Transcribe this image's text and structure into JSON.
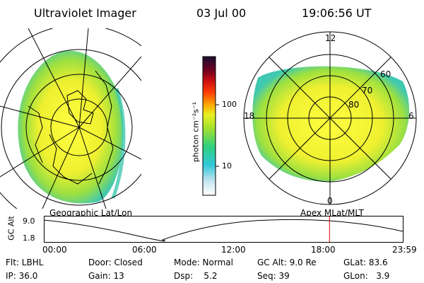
{
  "header": {
    "instrument": "Ultraviolet Imager",
    "date": "03 Jul 00",
    "time": "19:06:56 UT"
  },
  "panels": {
    "left_caption": "Geographic Lat/Lon",
    "right_caption": "Apex MLat/MLT"
  },
  "polar_plot": {
    "mlt_labels": {
      "top": "12",
      "bottom": "0",
      "left": "18",
      "right": "6"
    },
    "lat_labels": [
      "60",
      "70",
      "80"
    ]
  },
  "colorbar": {
    "unit_label": "photon cm⁻²s⁻¹",
    "ticks": [
      "100",
      "10"
    ],
    "colors": [
      "#ffffff",
      "#c8e6f0",
      "#30c8d8",
      "#30d080",
      "#a0e030",
      "#e8f020",
      "#ffa000",
      "#ff4000",
      "#d01010",
      "#700020",
      "#1a1030"
    ]
  },
  "altitude_strip": {
    "axis_label": "GC Alt",
    "y_ticks": [
      "9.0",
      "1.8"
    ],
    "x_ticks": [
      "00:00",
      "06:00",
      "12:00",
      "18:00",
      "23:59"
    ],
    "current_time_marker_hours": 19.1,
    "marker_color": "#e00000"
  },
  "status": {
    "filter": "Flt: LBHL",
    "door": "Door: Closed",
    "mode": "Mode: Normal",
    "gc_alt": "GC Alt: 9.0 Re",
    "glat": "GLat:  83.6",
    "ip": "IP: 36.0",
    "gain": "Gain: 13",
    "dsp": "Dsp:    5.2",
    "seq": "Seq: 39",
    "glon": "GLon:   3.9"
  }
}
